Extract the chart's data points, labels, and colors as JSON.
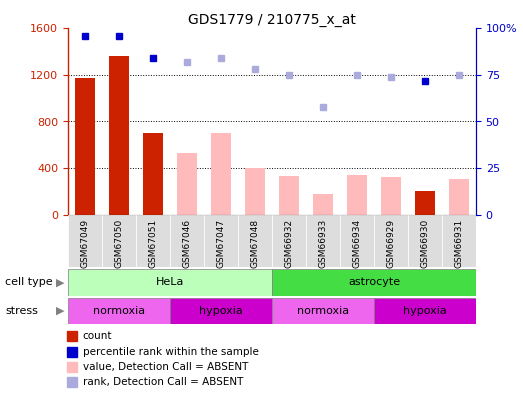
{
  "title": "GDS1779 / 210775_x_at",
  "samples": [
    "GSM67049",
    "GSM67050",
    "GSM67051",
    "GSM67046",
    "GSM67047",
    "GSM67048",
    "GSM66932",
    "GSM66933",
    "GSM66934",
    "GSM66929",
    "GSM66930",
    "GSM66931"
  ],
  "bar_values": [
    1170,
    1360,
    700,
    530,
    700,
    400,
    330,
    175,
    340,
    320,
    200,
    310
  ],
  "bar_colors": [
    "#cc2200",
    "#cc2200",
    "#cc2200",
    "#ffbbbb",
    "#ffbbbb",
    "#ffbbbb",
    "#ffbbbb",
    "#ffbbbb",
    "#ffbbbb",
    "#ffbbbb",
    "#cc2200",
    "#ffbbbb"
  ],
  "dot_values": [
    96,
    96,
    84,
    82,
    84,
    78,
    75,
    58,
    75,
    74,
    72,
    75
  ],
  "dot_colors": [
    "#0000cc",
    "#0000cc",
    "#0000cc",
    "#aaaadd",
    "#aaaadd",
    "#aaaadd",
    "#aaaadd",
    "#aaaadd",
    "#aaaadd",
    "#aaaadd",
    "#0000cc",
    "#aaaadd"
  ],
  "ylim_left": [
    0,
    1600
  ],
  "ylim_right": [
    0,
    100
  ],
  "yticks_left": [
    0,
    400,
    800,
    1200,
    1600
  ],
  "yticks_right": [
    0,
    25,
    50,
    75,
    100
  ],
  "ytick_labels_right": [
    "0",
    "25",
    "50",
    "75",
    "100%"
  ],
  "cell_type_groups": [
    {
      "label": "HeLa",
      "start": 0,
      "end": 6,
      "color": "#bbffbb"
    },
    {
      "label": "astrocyte",
      "start": 6,
      "end": 12,
      "color": "#44dd44"
    }
  ],
  "stress_groups": [
    {
      "label": "normoxia",
      "start": 0,
      "end": 3,
      "color": "#ee66ee"
    },
    {
      "label": "hypoxia",
      "start": 3,
      "end": 6,
      "color": "#cc00cc"
    },
    {
      "label": "normoxia",
      "start": 6,
      "end": 9,
      "color": "#ee66ee"
    },
    {
      "label": "hypoxia",
      "start": 9,
      "end": 12,
      "color": "#cc00cc"
    }
  ],
  "legend_items": [
    {
      "label": "count",
      "color": "#cc2200"
    },
    {
      "label": "percentile rank within the sample",
      "color": "#0000cc"
    },
    {
      "label": "value, Detection Call = ABSENT",
      "color": "#ffbbbb"
    },
    {
      "label": "rank, Detection Call = ABSENT",
      "color": "#aaaadd"
    }
  ],
  "cell_type_label": "cell type",
  "stress_label": "stress",
  "bar_width": 0.6,
  "left_axis_color": "#cc2200",
  "right_axis_color": "#0000cc",
  "tick_bg_color": "#dddddd"
}
